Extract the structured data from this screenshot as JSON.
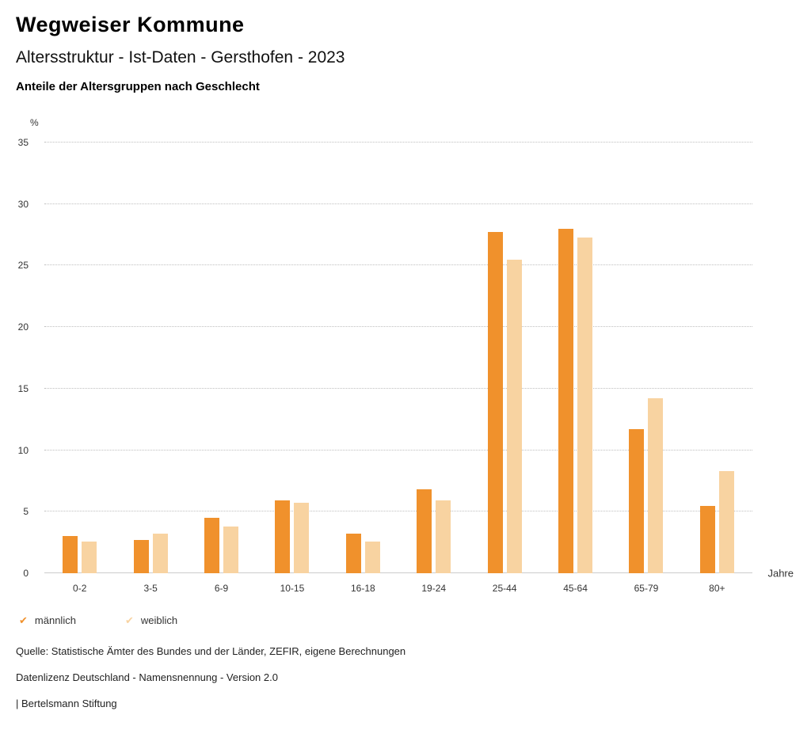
{
  "header": {
    "title": "Wegweiser Kommune",
    "subtitle": "Altersstruktur - Ist-Daten - Gersthofen - 2023",
    "description": "Anteile der Altersgruppen nach Geschlecht"
  },
  "chart_data": {
    "type": "bar",
    "title": "Anteile der Altersgruppen nach Geschlecht",
    "x_unit": "Jahre",
    "y_unit": "%",
    "ylim": [
      0,
      35
    ],
    "y_ticks": [
      0,
      5,
      10,
      15,
      20,
      25,
      30,
      35
    ],
    "grid": "horizontal-dotted",
    "legend_position": "bottom-left",
    "categories": [
      "0-2",
      "3-5",
      "6-9",
      "10-15",
      "16-18",
      "19-24",
      "25-44",
      "45-64",
      "65-79",
      "80+"
    ],
    "series": [
      {
        "name": "männlich",
        "color": "#F0912C",
        "values": [
          3.0,
          2.7,
          4.5,
          5.9,
          3.2,
          6.8,
          27.7,
          28.0,
          11.7,
          5.5
        ]
      },
      {
        "name": "weiblich",
        "color": "#F8D3A1",
        "values": [
          2.6,
          3.2,
          3.8,
          5.7,
          2.6,
          5.9,
          25.5,
          27.3,
          14.2,
          8.3
        ]
      }
    ]
  },
  "legend": {
    "items": [
      {
        "label": "männlich",
        "color": "#F0912C",
        "icon": "check"
      },
      {
        "label": "weiblich",
        "color": "#F8D3A1",
        "icon": "check"
      }
    ]
  },
  "footer": {
    "source": "Quelle: Statistische Ämter des Bundes und der Länder, ZEFIR, eigene Berechnungen",
    "license": "Datenlizenz Deutschland - Namensnennung - Version 2.0",
    "attribution": "| Bertelsmann Stiftung"
  }
}
